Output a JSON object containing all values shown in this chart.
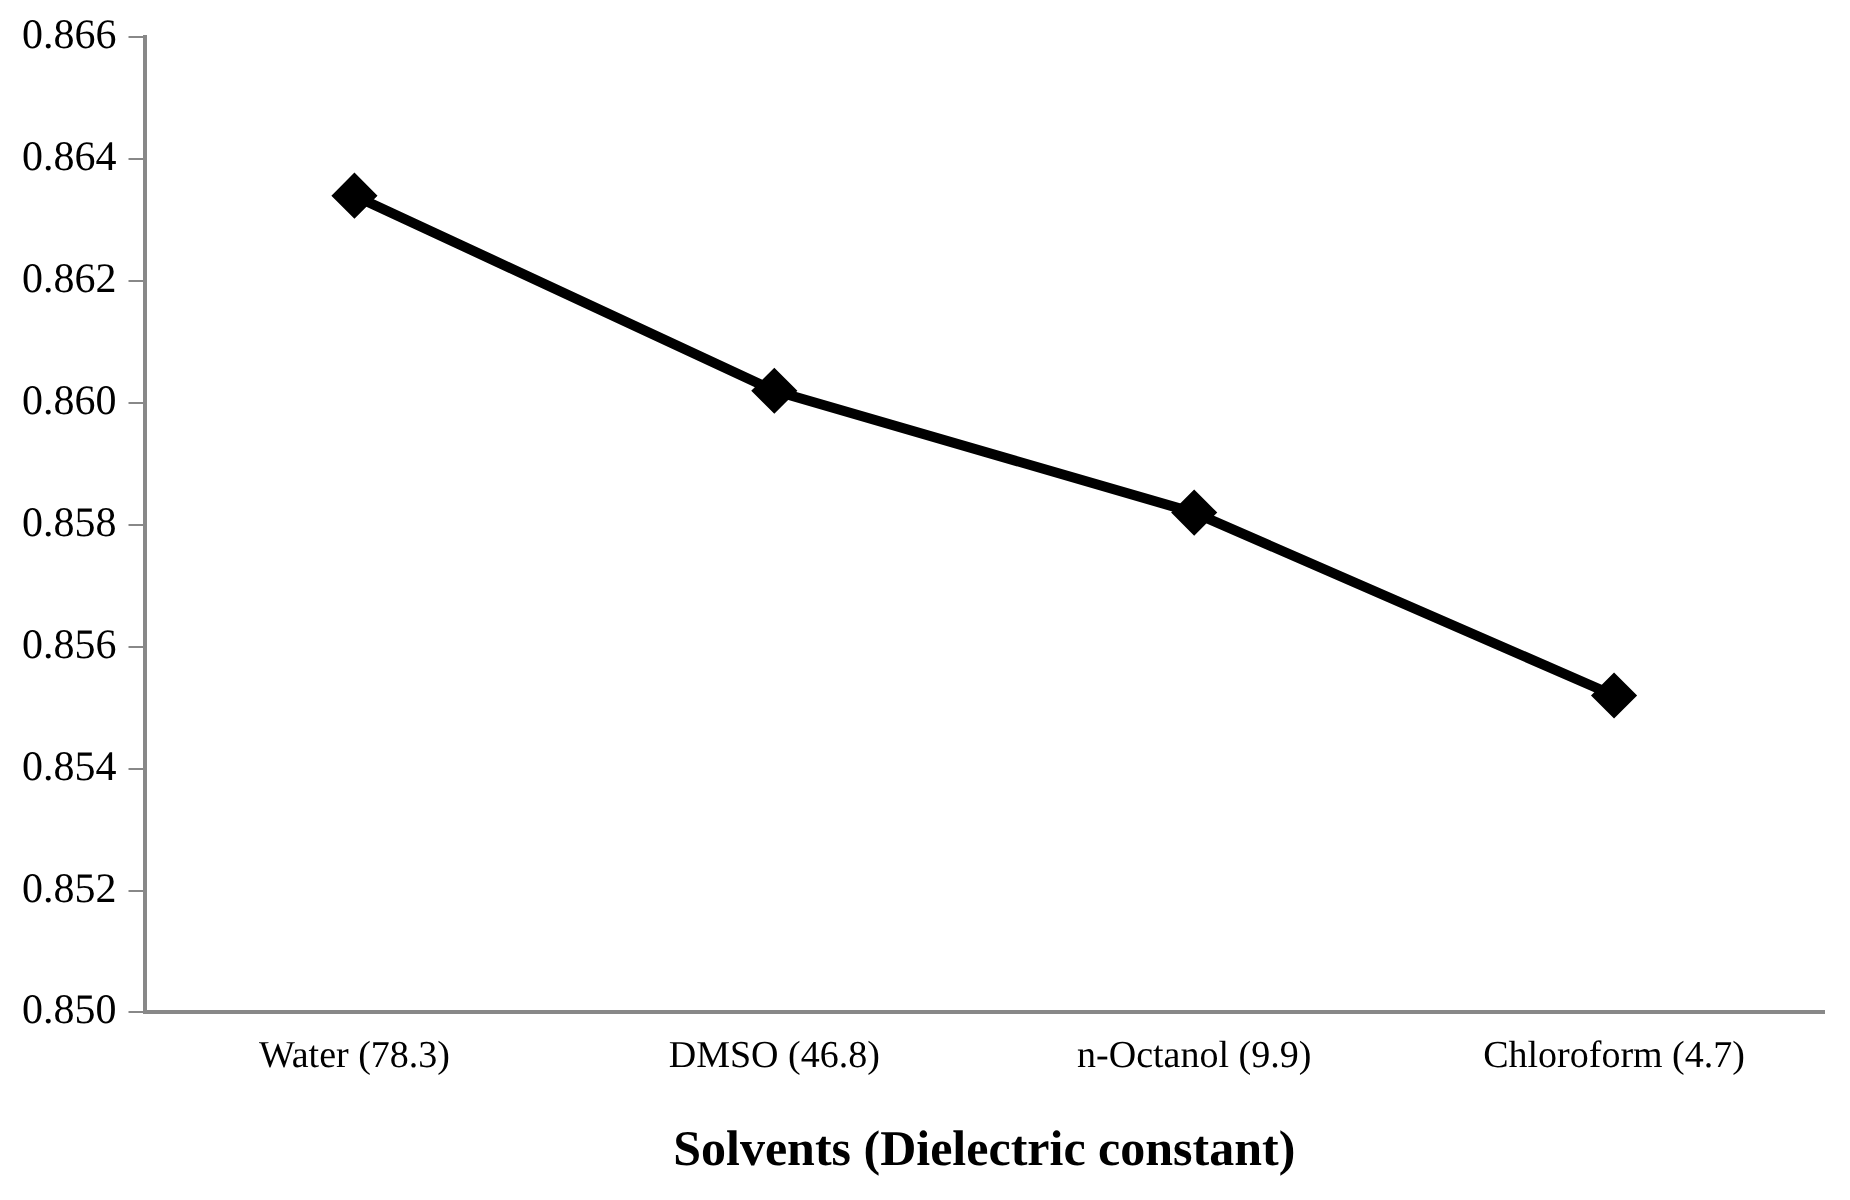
{
  "chart_data": {
    "type": "line",
    "xlabel": "Solvents (Dielectric constant)",
    "categories": [
      "Water (78.3)",
      "DMSO (46.8)",
      "n-Octanol (9.9)",
      "Chloroform (4.7)"
    ],
    "series": [
      {
        "color": "#000000",
        "values": [
          0.8634,
          0.8602,
          0.8582,
          0.8552
        ]
      }
    ],
    "ylim": [
      0.85,
      0.866
    ],
    "yticks": [
      {
        "value": 0.85,
        "label": "0.850"
      },
      0.852,
      0.854,
      0.856,
      0.858,
      {
        "value": 0.86,
        "label": "0.860"
      },
      0.862,
      0.864,
      0.866
    ],
    "grid": false,
    "legend": false,
    "marker": "diamond",
    "line_style": "solid"
  }
}
